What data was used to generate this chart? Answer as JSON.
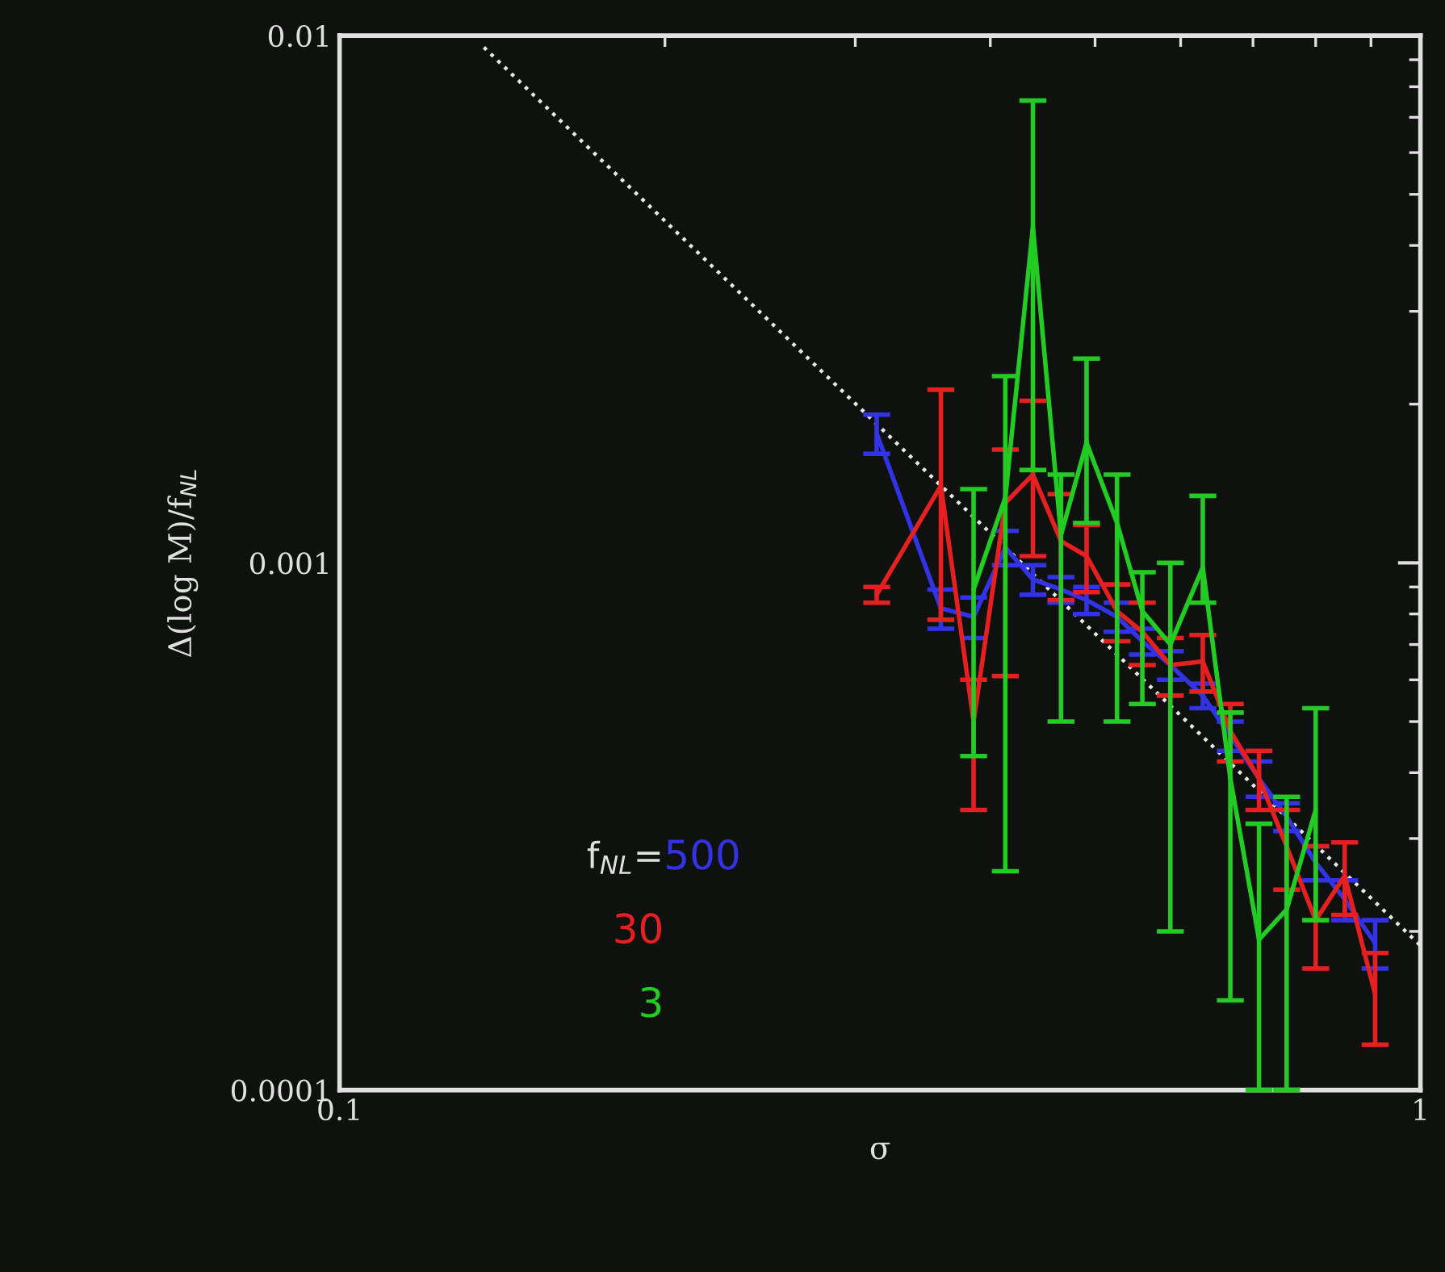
{
  "chart_data": {
    "type": "line",
    "xlabel": "σ",
    "ylabel": "Δ(log M)/f$_{NL}$",
    "legend_title": "f$_{NL}$=",
    "legend": "bottom left",
    "log": "xy",
    "xlim": [
      0.1,
      1
    ],
    "xticks": [
      0.1,
      1
    ],
    "ylim": [
      0.0001,
      0.01
    ],
    "yticks": [
      0.0001,
      0.001,
      0.01
    ],
    "grid": false,
    "series": [
      {
        "type": "line",
        "color": "#e8e8e8",
        "line_style": "dotted",
        "x": [
          0.136,
          1.0
        ],
        "values": [
          0.0095,
          0.000188
        ]
      },
      {
        "name": "500",
        "color": "#3333e6",
        "x": [
          0.314,
          0.36,
          0.386,
          0.413,
          0.438,
          0.465,
          0.491,
          0.524,
          0.553,
          0.587,
          0.629,
          0.667,
          0.709,
          0.752,
          0.8,
          0.851,
          0.908
        ],
        "values": [
          0.00176,
          0.00082,
          0.00079,
          0.00107,
          0.00093,
          0.00089,
          0.00085,
          0.00079,
          0.00071,
          0.00064,
          0.00056,
          0.00047,
          0.00039,
          0.00033,
          0.00027,
          0.00023,
          0.00019
        ],
        "errors": [
          0.00015,
          7e-05,
          7e-05,
          8e-05,
          6e-05,
          5e-05,
          5e-05,
          5e-05,
          4e-05,
          4e-05,
          3e-05,
          3e-05,
          3e-05,
          2e-05,
          2e-05,
          2e-05,
          2e-05
        ]
      },
      {
        "name": "30",
        "color": "#e62020",
        "x": [
          0.314,
          0.36,
          0.386,
          0.413,
          0.438,
          0.465,
          0.491,
          0.524,
          0.553,
          0.587,
          0.629,
          0.667,
          0.709,
          0.752,
          0.8,
          0.851,
          0.908
        ],
        "values": [
          0.00087,
          0.0014,
          0.0005,
          0.0013,
          0.00147,
          0.0011,
          0.00103,
          0.00081,
          0.00074,
          0.00064,
          0.00065,
          0.00048,
          0.00039,
          0.00029,
          0.00021,
          0.000255,
          0.000152
        ],
        "errors": [
          3e-05,
          [
            0.00078,
            0.00213
          ],
          [
            0.00034,
            0.0006
          ],
          [
            0.00061,
            0.00164
          ],
          [
            0.00103,
            0.00203
          ],
          0.00025,
          0.00015,
          0.0001,
          0.0001,
          8e-05,
          8e-05,
          6e-05,
          5e-05,
          5e-05,
          [
            0.00017,
            0.00029
          ],
          4e-05,
          [
            0.000122,
            0.000182
          ]
        ]
      },
      {
        "name": "3",
        "color": "#22cc22",
        "x": [
          0.386,
          0.413,
          0.438,
          0.465,
          0.491,
          0.524,
          0.553,
          0.587,
          0.629,
          0.667,
          0.709,
          0.752,
          0.8
        ],
        "values": [
          0.00089,
          0.00133,
          0.00434,
          0.00113,
          0.00169,
          0.00119,
          0.00081,
          0.0007,
          0.00098,
          0.00039,
          0.000193,
          0.00022,
          0.00034
        ],
        "errors": [
          [
            0.00043,
            0.00138
          ],
          [
            0.00026,
            0.00226
          ],
          [
            0.0015,
            0.00753
          ],
          [
            0.0005,
            0.00147
          ],
          [
            0.00119,
            0.00244
          ],
          [
            0.0005,
            0.00147
          ],
          [
            0.00054,
            0.00096
          ],
          [
            0.0002,
            0.001
          ],
          [
            0.00084,
            0.00134
          ],
          [
            0.000148,
            0.00052
          ],
          [
            0.0001,
            0.00032
          ],
          [
            0.0001,
            0.00036
          ],
          [
            0.00021,
            0.00053
          ]
        ]
      }
    ]
  }
}
